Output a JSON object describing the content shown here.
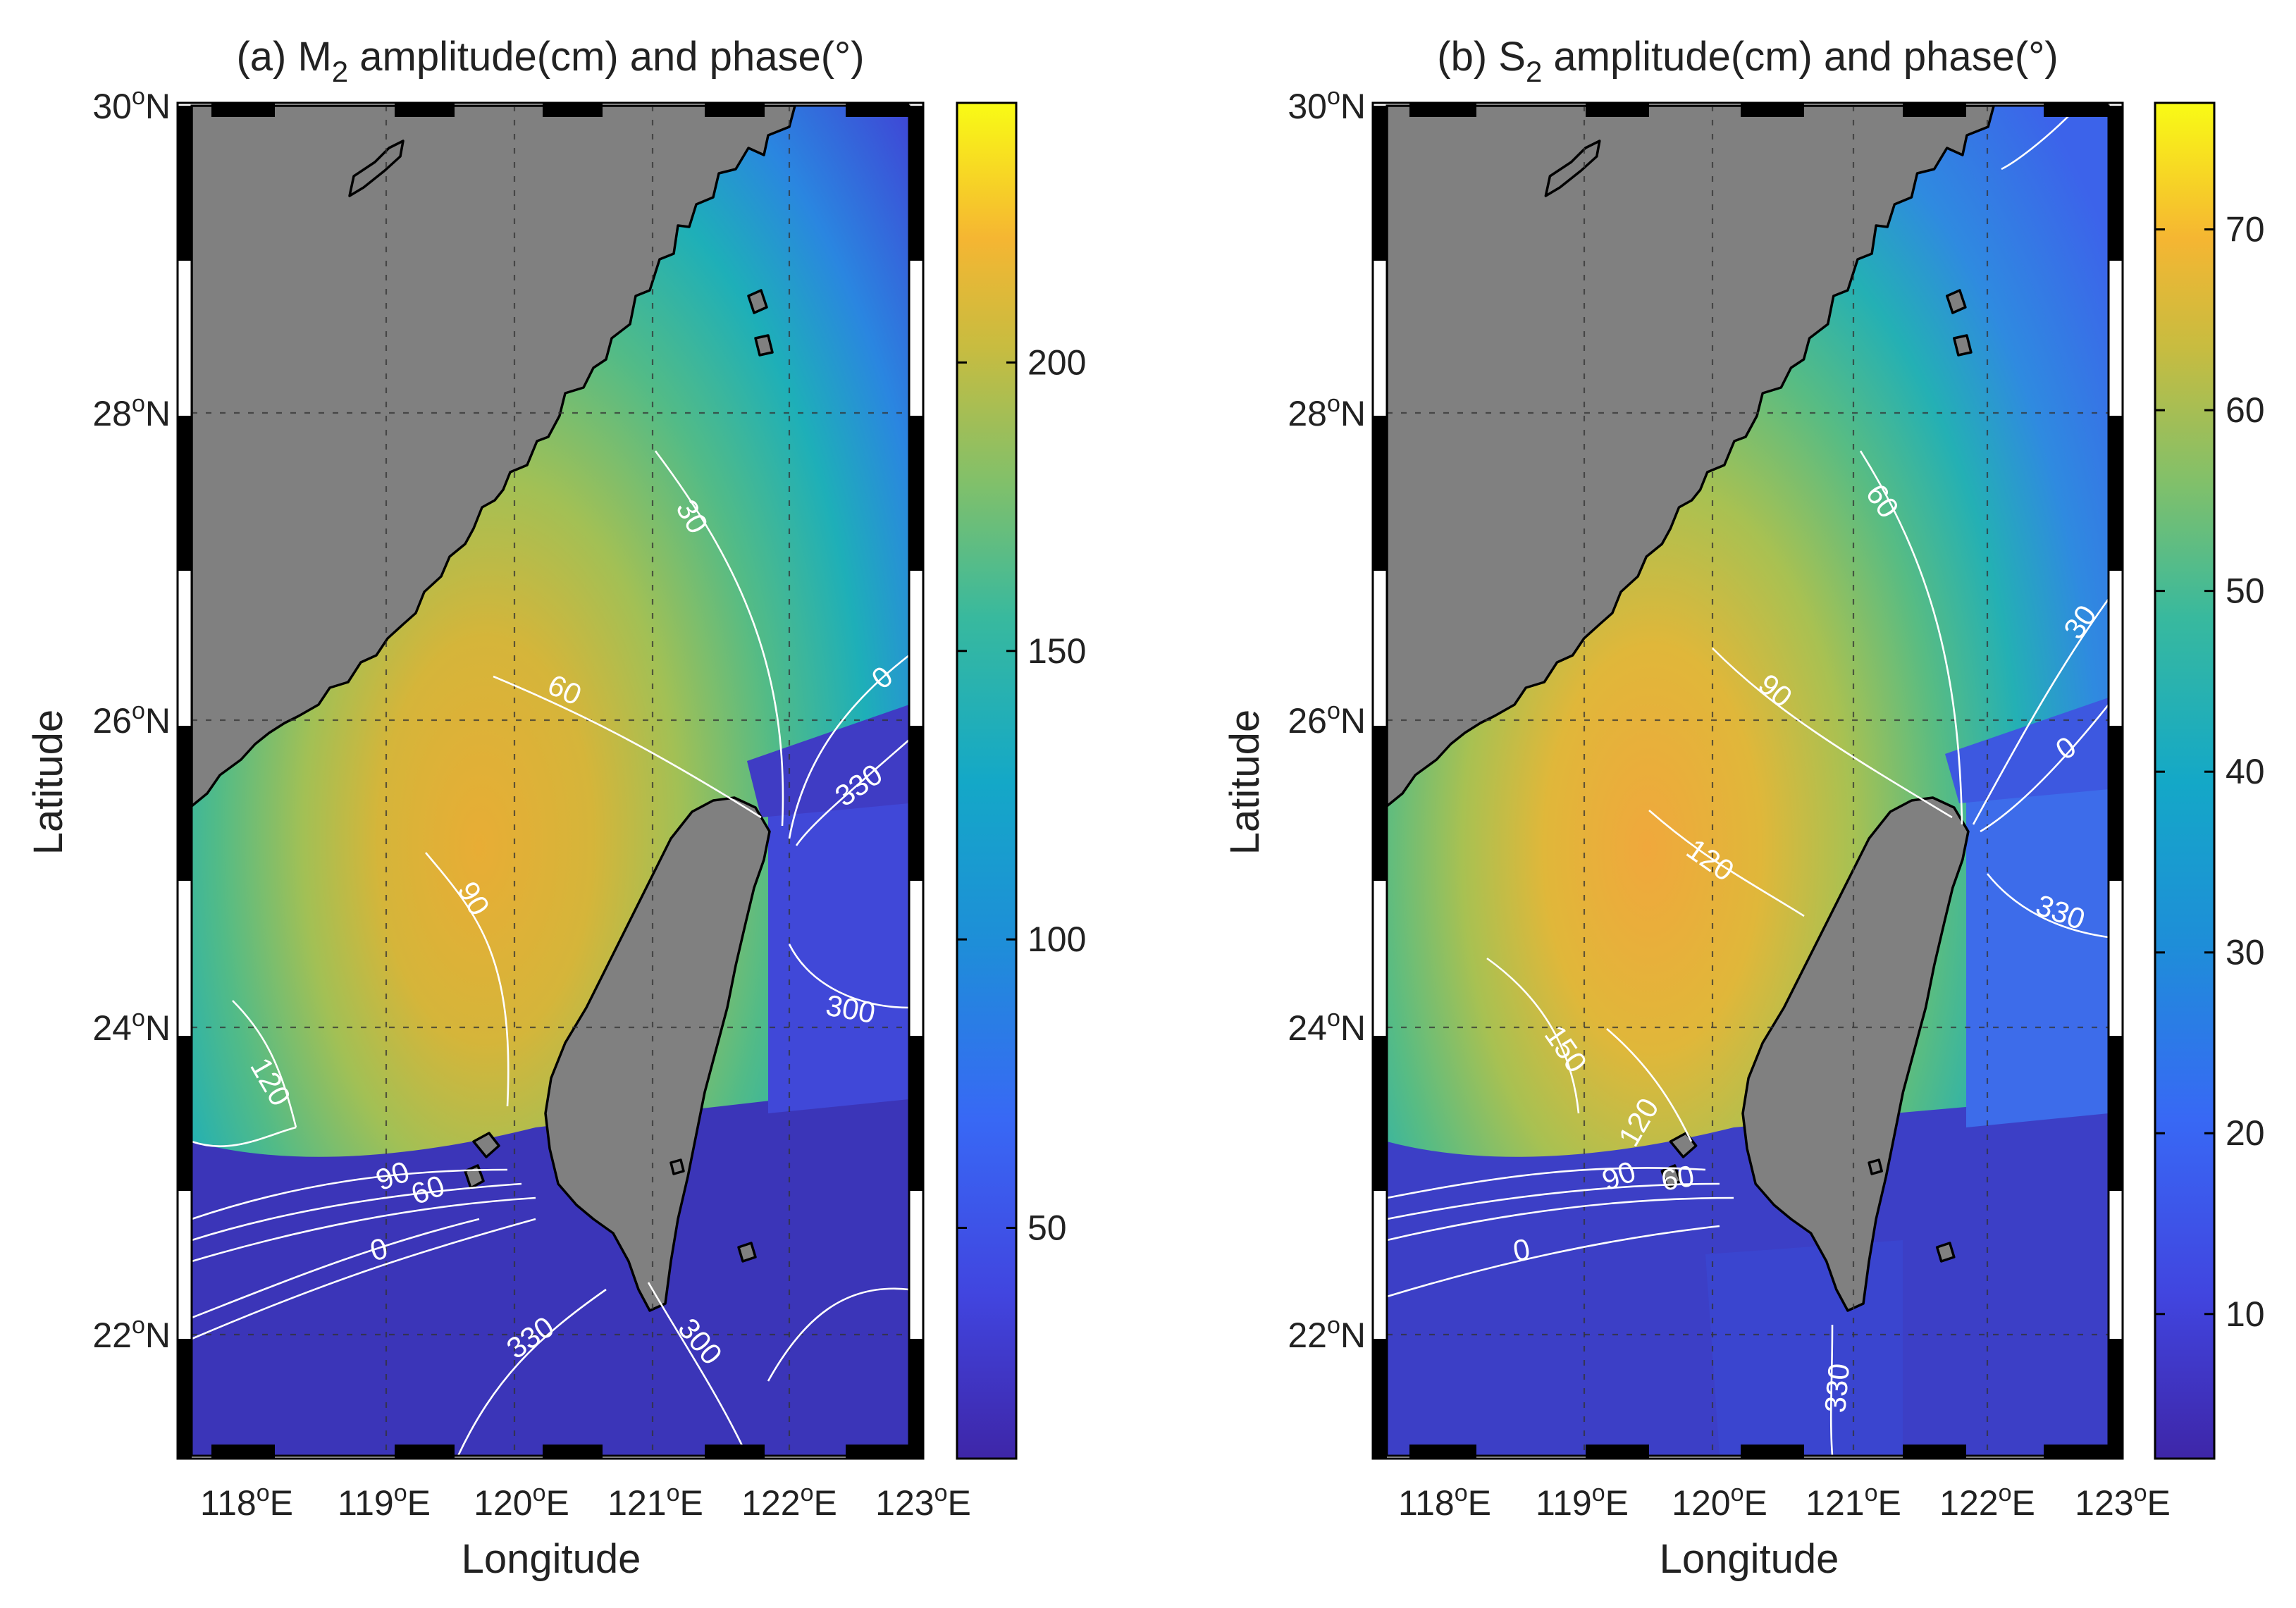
{
  "colors": {
    "ocean_low": "#3a2fa8",
    "ocean_high": "#fbe91e",
    "land": "#808080",
    "contour": "#ffffff",
    "grid": "#333333"
  },
  "panels": [
    {
      "id": "a",
      "title_prefix": "(a) M",
      "title_sub": "2",
      "title_suffix": " amplitude(cm) and phase(°)",
      "ylabel": "Latitude",
      "xlabel": "Longitude",
      "colorbar": {
        "range": [
          10,
          245
        ],
        "ticks": [
          "50",
          "100",
          "150",
          "200"
        ],
        "tick_values": [
          50,
          100,
          150,
          200
        ]
      },
      "contour_labels": [
        "30",
        "60",
        "90",
        "120",
        "0",
        "330",
        "300",
        "90",
        "60",
        "0",
        "330",
        "300"
      ]
    },
    {
      "id": "b",
      "title_prefix": "(b) S",
      "title_sub": "2",
      "title_suffix": " amplitude(cm) and phase(°)",
      "ylabel": "Latitude",
      "xlabel": "Longitude",
      "colorbar": {
        "range": [
          2,
          77
        ],
        "ticks": [
          "10",
          "20",
          "30",
          "40",
          "50",
          "60",
          "70"
        ],
        "tick_values": [
          10,
          20,
          30,
          40,
          50,
          60,
          70
        ]
      },
      "contour_labels": [
        "60",
        "90",
        "120",
        "150",
        "30",
        "0",
        "330",
        "120",
        "90",
        "60",
        "0",
        "330"
      ]
    }
  ],
  "axes": {
    "lat_ticks": [
      {
        "value": 30,
        "deg": "30",
        "hemi": "N"
      },
      {
        "value": 28,
        "deg": "28",
        "hemi": "N"
      },
      {
        "value": 26,
        "deg": "26",
        "hemi": "N"
      },
      {
        "value": 24,
        "deg": "24",
        "hemi": "N"
      },
      {
        "value": 22,
        "deg": "22",
        "hemi": "N"
      }
    ],
    "lon_ticks": [
      {
        "value": 118,
        "deg": "118",
        "hemi": "E"
      },
      {
        "value": 119,
        "deg": "119",
        "hemi": "E"
      },
      {
        "value": 120,
        "deg": "120",
        "hemi": "E"
      },
      {
        "value": 121,
        "deg": "121",
        "hemi": "E"
      },
      {
        "value": 122,
        "deg": "122",
        "hemi": "E"
      },
      {
        "value": 123,
        "deg": "123",
        "hemi": "E"
      }
    ],
    "degree_symbol": "o",
    "lon_range": [
      117.6,
      123
    ],
    "lat_range": [
      21,
      30
    ]
  }
}
